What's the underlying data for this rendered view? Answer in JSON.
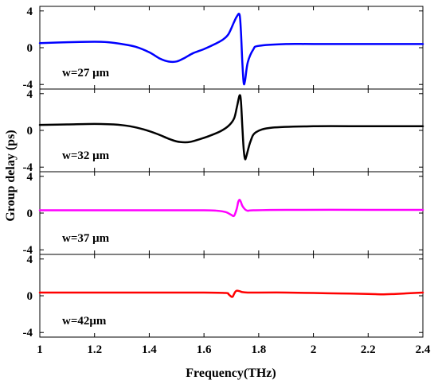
{
  "chart_data": {
    "type": "line",
    "xlabel": "Frequency(THz)",
    "ylabel": "Group delay (ps)",
    "xlim": [
      1,
      2.4
    ],
    "ylim": [
      -4.5,
      4.5
    ],
    "x_ticks": [
      "1",
      "1.2",
      "1.4",
      "1.6",
      "1.8",
      "2",
      "2.2",
      "2.4"
    ],
    "y_ticks": [
      "4",
      "0",
      "-4"
    ],
    "grid": false,
    "panels": [
      {
        "label": "w=27 μm",
        "color": "#0000ff",
        "x": [
          1.0,
          1.1,
          1.2,
          1.25,
          1.3,
          1.35,
          1.4,
          1.44,
          1.47,
          1.5,
          1.53,
          1.56,
          1.6,
          1.64,
          1.67,
          1.69,
          1.71,
          1.72,
          1.73,
          1.735,
          1.74,
          1.745,
          1.75,
          1.76,
          1.78,
          1.8,
          1.9,
          2.0,
          2.2,
          2.4
        ],
        "y": [
          0.5,
          0.6,
          0.65,
          0.6,
          0.4,
          0.1,
          -0.5,
          -1.2,
          -1.5,
          -1.5,
          -1.1,
          -0.6,
          -0.15,
          0.4,
          0.9,
          1.5,
          2.8,
          3.4,
          3.6,
          1.8,
          -1.5,
          -3.8,
          -3.6,
          -1.6,
          -0.2,
          0.2,
          0.4,
          0.4,
          0.4,
          0.4
        ]
      },
      {
        "label": "w=32 μm",
        "color": "#000000",
        "x": [
          1.0,
          1.1,
          1.2,
          1.27,
          1.33,
          1.38,
          1.43,
          1.47,
          1.5,
          1.53,
          1.55,
          1.58,
          1.62,
          1.66,
          1.69,
          1.71,
          1.72,
          1.73,
          1.735,
          1.74,
          1.745,
          1.75,
          1.755,
          1.77,
          1.79,
          1.85,
          2.0,
          2.2,
          2.4
        ],
        "y": [
          0.6,
          0.65,
          0.7,
          0.65,
          0.45,
          0.1,
          -0.4,
          -0.9,
          -1.2,
          -1.3,
          -1.25,
          -1.0,
          -0.6,
          -0.1,
          0.5,
          1.3,
          2.5,
          3.8,
          3.2,
          0.5,
          -2.0,
          -3.1,
          -2.8,
          -1.2,
          -0.2,
          0.3,
          0.45,
          0.45,
          0.45
        ]
      },
      {
        "label": "w=37 μm",
        "color": "#ff00ff",
        "x": [
          1.0,
          1.2,
          1.4,
          1.6,
          1.65,
          1.68,
          1.7,
          1.71,
          1.72,
          1.725,
          1.73,
          1.735,
          1.74,
          1.75,
          1.76,
          1.78,
          1.9,
          2.2,
          2.4
        ],
        "y": [
          0.3,
          0.3,
          0.3,
          0.3,
          0.25,
          0.1,
          -0.2,
          -0.3,
          0.5,
          1.2,
          1.45,
          1.2,
          0.8,
          0.4,
          0.25,
          0.3,
          0.35,
          0.35,
          0.35
        ]
      },
      {
        "label": "w=42μm",
        "color": "#ff0000",
        "x": [
          1.0,
          1.2,
          1.4,
          1.6,
          1.68,
          1.69,
          1.7,
          1.705,
          1.71,
          1.715,
          1.72,
          1.73,
          1.74,
          1.76,
          1.8,
          1.9,
          2.0,
          2.1,
          2.2,
          2.25,
          2.3,
          2.4
        ],
        "y": [
          0.35,
          0.35,
          0.35,
          0.35,
          0.3,
          0.15,
          -0.1,
          -0.1,
          0.2,
          0.45,
          0.55,
          0.5,
          0.4,
          0.35,
          0.35,
          0.35,
          0.3,
          0.25,
          0.2,
          0.15,
          0.2,
          0.35
        ]
      }
    ]
  }
}
